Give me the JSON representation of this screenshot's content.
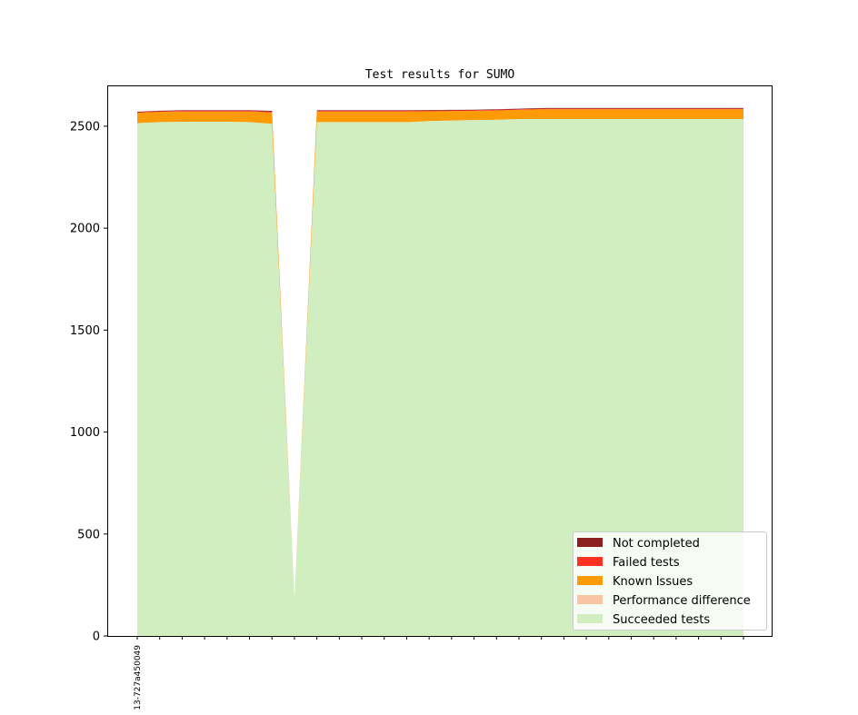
{
  "chart_data": {
    "type": "area",
    "stacked": true,
    "title": "Test results for SUMO",
    "xlabel": "",
    "ylabel": "",
    "ylim": [
      0,
      2700
    ],
    "yticks": [
      0,
      500,
      1000,
      1500,
      2000,
      2500
    ],
    "x": [
      "13-727a450049",
      "",
      "",
      "",
      "",
      "",
      "",
      "",
      "",
      "",
      "",
      "",
      "",
      "",
      "",
      "",
      "",
      "",
      "",
      "",
      "",
      "",
      "",
      "",
      "",
      "",
      "",
      ""
    ],
    "series": [
      {
        "name": "Succeeded tests",
        "color": "#d0eec0",
        "values": [
          2515,
          2520,
          2522,
          2522,
          2522,
          2520,
          2512,
          180,
          2520,
          2520,
          2520,
          2520,
          2520,
          2525,
          2528,
          2530,
          2532,
          2535,
          2535,
          2535,
          2535,
          2535,
          2535,
          2535,
          2535,
          2535,
          2535,
          2535
        ]
      },
      {
        "name": "Performance difference",
        "color": "#f9c4a4",
        "values": [
          0,
          0,
          0,
          0,
          0,
          0,
          0,
          0,
          0,
          0,
          0,
          0,
          0,
          0,
          0,
          0,
          0,
          0,
          0,
          0,
          0,
          0,
          0,
          0,
          0,
          0,
          0,
          0
        ]
      },
      {
        "name": "Known Issues",
        "color": "#fd9b06",
        "values": [
          50,
          50,
          50,
          50,
          50,
          52,
          55,
          0,
          52,
          52,
          52,
          52,
          52,
          48,
          46,
          45,
          45,
          45,
          48,
          48,
          48,
          48,
          48,
          48,
          48,
          48,
          48,
          48
        ]
      },
      {
        "name": "Failed tests",
        "color": "#fe3122",
        "values": [
          3,
          3,
          3,
          3,
          3,
          3,
          4,
          0,
          3,
          3,
          3,
          3,
          3,
          3,
          3,
          3,
          3,
          3,
          3,
          3,
          3,
          3,
          3,
          3,
          3,
          3,
          3,
          3
        ]
      },
      {
        "name": "Not completed",
        "color": "#8b1f1f",
        "values": [
          3,
          3,
          3,
          3,
          3,
          3,
          4,
          0,
          3,
          3,
          3,
          3,
          3,
          3,
          3,
          3,
          3,
          3,
          3,
          3,
          3,
          3,
          3,
          3,
          3,
          3,
          3,
          3
        ]
      }
    ],
    "legend": {
      "placement": "lower-right",
      "entries": [
        "Not completed",
        "Failed tests",
        "Known Issues",
        "Performance difference",
        "Succeeded tests"
      ]
    },
    "grid": false
  }
}
